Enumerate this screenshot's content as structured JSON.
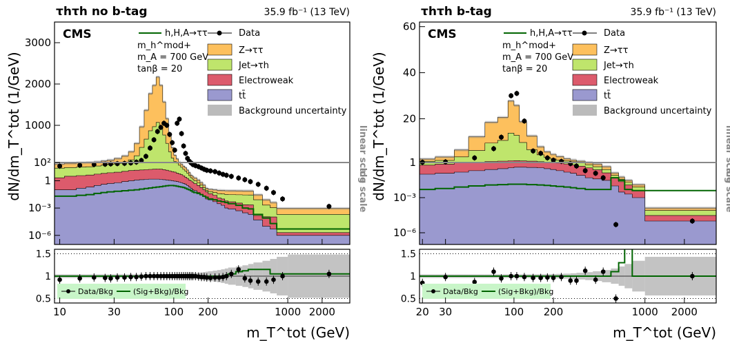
{
  "chart_data": [
    {
      "type": "histogram",
      "panel_title": "τhτh no b-tag",
      "lumi": "35.9 fb⁻¹ (13 TeV)",
      "experiment": "CMS",
      "ylabel": "dN/dm_T^tot (1/GeV)",
      "xlabel": "m_T^tot (GeV)",
      "xscale": "log",
      "xlim": [
        9,
        3500
      ],
      "x_tick_labels": [
        "10",
        "30",
        "100",
        "200",
        "1000",
        "2000"
      ],
      "x_tick_values": [
        10,
        30,
        100,
        200,
        1000,
        2000
      ],
      "upper_linear_ylim": [
        100,
        3500
      ],
      "upper_linear_ticks": [
        1000,
        2000,
        3000
      ],
      "lower_log_ylim": [
        1e-07,
        100
      ],
      "lower_log_tick_labels": [
        "10²",
        "1",
        "10⁻³",
        "10⁻⁶"
      ],
      "lower_log_tick_values": [
        100,
        1,
        0.001,
        1e-06
      ],
      "scale_labels": [
        "linear scale",
        "log scale"
      ],
      "signal_model": [
        "m_h^mod+",
        "m_A = 700 GeV",
        "tanβ = 20"
      ],
      "bin_edges": [
        9,
        11,
        14,
        17,
        20,
        23,
        26,
        30,
        35,
        40,
        45,
        50,
        55,
        60,
        65,
        70,
        75,
        80,
        85,
        90,
        95,
        100,
        105,
        110,
        115,
        120,
        125,
        130,
        135,
        140,
        145,
        150,
        160,
        170,
        180,
        190,
        200,
        220,
        240,
        260,
        280,
        300,
        350,
        400,
        450,
        500,
        600,
        700,
        800,
        1000,
        3500
      ],
      "series": [
        {
          "name": "Z→ττ",
          "color": "#fdc05d",
          "values": [
            45,
            55,
            60,
            65,
            75,
            85,
            95,
            120,
            150,
            200,
            300,
            500,
            700,
            900,
            1000,
            1100,
            1000,
            800,
            600,
            380,
            250,
            150,
            100,
            60,
            35,
            22,
            15,
            8,
            4,
            2,
            1.5,
            1,
            0.6,
            0.3,
            0.15,
            0.06,
            0.05,
            0.05,
            0.05,
            0.05,
            0.05,
            0.05,
            0.05,
            0.05,
            0.05,
            0.02,
            0.006,
            0.003,
            0.0007,
            0.0007
          ]
        },
        {
          "name": "Jet→τh",
          "color": "#bfe56c",
          "values": [
            22,
            25,
            28,
            30,
            36,
            45,
            55,
            70,
            100,
            150,
            250,
            450,
            650,
            850,
            950,
            1050,
            950,
            750,
            550,
            350,
            200,
            120,
            80,
            45,
            25,
            14,
            9,
            5,
            2.5,
            1.2,
            0.8,
            0.5,
            0.3,
            0.15,
            0.08,
            0.03,
            0.025,
            0.025,
            0.025,
            0.025,
            0.025,
            0.025,
            0.025,
            0.025,
            0.025,
            0.008,
            0.002,
            0.001,
            0.0002,
            0.0002
          ]
        },
        {
          "name": "Electroweak",
          "color": "#dc5b6c",
          "values": [
            2,
            3,
            3.5,
            4,
            5,
            6,
            7,
            8,
            10,
            12,
            13,
            14,
            15,
            16,
            17,
            18,
            17,
            15,
            13,
            11,
            9,
            8,
            6,
            5,
            4,
            3,
            2,
            1.5,
            1,
            0.8,
            0.6,
            0.4,
            0.25,
            0.15,
            0.08,
            0.05,
            0.03,
            0.02,
            0.01,
            0.008,
            0.005,
            0.004,
            0.003,
            0.002,
            0.002,
            0.0001,
            0.0001,
            0.0001,
            1e-06,
            1e-06
          ]
        },
        {
          "name": "tt̄",
          "color": "#9a99cf",
          "values": [
            0.1,
            0.1,
            0.15,
            0.2,
            0.3,
            0.4,
            0.5,
            0.6,
            0.8,
            1.0,
            1.2,
            1.3,
            1.4,
            1.5,
            1.5,
            1.5,
            1.4,
            1.3,
            1.2,
            1.1,
            1.0,
            0.9,
            0.8,
            0.7,
            0.6,
            0.5,
            0.4,
            0.3,
            0.2,
            0.15,
            0.1,
            0.08,
            0.05,
            0.03,
            0.02,
            0.01,
            0.008,
            0.005,
            0.003,
            0.002,
            0.001,
            0.0008,
            0.0005,
            0.0003,
            0.0002,
            5e-05,
            1e-05,
            5e-06,
            1e-06,
            1e-06
          ]
        },
        {
          "name": "h,H,A→ττ",
          "color": "#006400",
          "values": [
            0.02,
            0.02,
            0.025,
            0.03,
            0.04,
            0.05,
            0.06,
            0.07,
            0.08,
            0.09,
            0.1,
            0.12,
            0.14,
            0.16,
            0.18,
            0.2,
            0.22,
            0.25,
            0.28,
            0.3,
            0.3,
            0.28,
            0.25,
            0.22,
            0.2,
            0.18,
            0.15,
            0.12,
            0.1,
            0.08,
            0.06,
            0.05,
            0.04,
            0.03,
            0.02,
            0.015,
            0.01,
            0.008,
            0.006,
            0.005,
            0.004,
            0.003,
            0.002,
            0.001,
            0.0008,
            0.0002,
            8e-05,
            2e-05,
            5e-06,
            5e-06
          ]
        }
      ],
      "data": {
        "name": "Data",
        "x": [
          10,
          15,
          20,
          25,
          28,
          32,
          37,
          42,
          47,
          52,
          57,
          62,
          67,
          72,
          77,
          82,
          87,
          92,
          97,
          102,
          107,
          112,
          117,
          122,
          127,
          132,
          137,
          142,
          147,
          155,
          165,
          175,
          185,
          195,
          210,
          230,
          250,
          270,
          290,
          320,
          370,
          420,
          470,
          550,
          650,
          750,
          900,
          2300
        ],
        "y": [
          40,
          50,
          60,
          65,
          70,
          75,
          80,
          90,
          110,
          150,
          250,
          450,
          650,
          850,
          950,
          1050,
          1000,
          780,
          580,
          400,
          1050,
          1150,
          800,
          500,
          320,
          200,
          130,
          90,
          60,
          45,
          35,
          25,
          18,
          14,
          12,
          10,
          7,
          5,
          4,
          3,
          2,
          1.3,
          0.8,
          0.4,
          0.15,
          0.05,
          0.01,
          0.0015
        ]
      },
      "ratio": {
        "ylim": [
          0.4,
          1.6
        ],
        "ticks": [
          0.5,
          1,
          1.5
        ],
        "legend": [
          "Data/Bkg",
          "(Sig+Bkg)/Bkg"
        ],
        "data_x": [
          10,
          15,
          20,
          25,
          28,
          32,
          37,
          42,
          47,
          52,
          57,
          62,
          67,
          72,
          77,
          82,
          87,
          92,
          97,
          102,
          107,
          112,
          117,
          122,
          127,
          132,
          137,
          142,
          147,
          155,
          165,
          175,
          185,
          195,
          210,
          230,
          250,
          270,
          290,
          320,
          370,
          420,
          470,
          550,
          650,
          750,
          900,
          2300
        ],
        "data_y": [
          0.92,
          0.95,
          0.97,
          0.96,
          0.95,
          0.97,
          0.97,
          0.98,
          0.98,
          0.99,
          1.0,
          1.0,
          1.0,
          1.0,
          1.0,
          1.0,
          1.0,
          1.0,
          1.0,
          1.0,
          1.0,
          1.0,
          1.0,
          1.0,
          1.0,
          1.0,
          1.0,
          1.0,
          1.0,
          1.0,
          0.99,
          0.98,
          0.98,
          0.97,
          0.96,
          0.97,
          0.97,
          0.98,
          1.0,
          1.05,
          1.15,
          0.95,
          0.9,
          0.88,
          0.88,
          0.92,
          1.0,
          1.05
        ],
        "sig_y": [
          1.0,
          1.0,
          1.0,
          1.0,
          1.0,
          1.0,
          1.0,
          1.0,
          1.0,
          1.0,
          1.0,
          1.0,
          1.0,
          1.0,
          1.0,
          1.0,
          1.0,
          1.0,
          1.0,
          1.0,
          1.0,
          1.0,
          1.0,
          1.0,
          1.0,
          1.0,
          1.0,
          1.0,
          1.0,
          1.0,
          1.0,
          1.0,
          1.0,
          1.0,
          1.0,
          1.0,
          1.0,
          1.0,
          1.0,
          1.0,
          1.02,
          1.05,
          1.1,
          1.12,
          1.15,
          1.15,
          1.15,
          1.05,
          1.05,
          1.05
        ]
      }
    },
    {
      "type": "histogram",
      "panel_title": "τhτh b-tag",
      "lumi": "35.9 fb⁻¹ (13 TeV)",
      "experiment": "CMS",
      "ylabel": "dN/dm_T^tot (1/GeV)",
      "xlabel": "m_T^tot (GeV)",
      "xscale": "log",
      "xlim": [
        19,
        3500
      ],
      "x_tick_labels": [
        "20",
        "30",
        "100",
        "200",
        "1000",
        "2000"
      ],
      "x_tick_values": [
        20,
        30,
        100,
        200,
        1000,
        2000
      ],
      "upper_linear_ylim": [
        1,
        62
      ],
      "upper_linear_ticks": [
        20,
        40,
        60
      ],
      "lower_log_ylim": [
        1e-07,
        1
      ],
      "lower_log_tick_labels": [
        "1",
        "10⁻³",
        "10⁻⁶"
      ],
      "lower_log_tick_values": [
        1,
        0.001,
        1e-06
      ],
      "scale_labels": [
        "linear scale",
        "log scale"
      ],
      "signal_model": [
        "m_h^mod+",
        "m_A = 700 GeV",
        "tanβ = 20"
      ],
      "bin_edges": [
        19,
        25,
        35,
        45,
        60,
        75,
        90,
        100,
        110,
        125,
        150,
        170,
        190,
        210,
        240,
        270,
        300,
        350,
        400,
        470,
        550,
        630,
        700,
        800,
        1000,
        3500
      ],
      "series": [
        {
          "name": "Z→ττ",
          "color": "#fdc05d",
          "values": [
            1.0,
            1.5,
            3,
            6,
            9,
            10,
            14,
            13,
            9,
            6,
            3.5,
            2.5,
            2,
            1.5,
            1,
            0.8,
            0.6,
            0.4,
            0.3,
            0.2,
            0.05,
            0.02,
            0.01,
            0.005,
            5e-05
          ]
        },
        {
          "name": "Jet→τh",
          "color": "#bfe56c",
          "values": [
            0.9,
            1.2,
            2.5,
            5,
            8,
            9,
            12,
            11,
            8,
            5,
            3,
            2,
            1.5,
            1.2,
            0.9,
            0.7,
            0.5,
            0.3,
            0.2,
            0.12,
            0.03,
            0.015,
            0.008,
            0.004,
            5e-05
          ]
        },
        {
          "name": "Electroweak",
          "color": "#dc5b6c",
          "values": [
            0.5,
            0.6,
            0.8,
            1.0,
            1.2,
            1.3,
            1.4,
            1.4,
            1.3,
            1.2,
            1.0,
            0.9,
            0.8,
            0.7,
            0.6,
            0.5,
            0.4,
            0.3,
            0.2,
            0.1,
            0.04,
            0.02,
            0.01,
            0.003,
            2e-05
          ]
        },
        {
          "name": "tt̄",
          "color": "#9a99cf",
          "values": [
            0.1,
            0.12,
            0.15,
            0.2,
            0.25,
            0.3,
            0.35,
            0.4,
            0.4,
            0.38,
            0.35,
            0.3,
            0.25,
            0.2,
            0.15,
            0.12,
            0.08,
            0.05,
            0.04,
            0.03,
            0.01,
            0.003,
            0.002,
            0.001,
            1e-05
          ]
        },
        {
          "name": "h,H,A→ττ",
          "color": "#006400",
          "values": [
            0.005,
            0.006,
            0.008,
            0.01,
            0.012,
            0.013,
            0.014,
            0.014,
            0.014,
            0.013,
            0.012,
            0.011,
            0.01,
            0.009,
            0.008,
            0.007,
            0.006,
            0.005,
            0.005,
            0.005,
            0.05,
            0.03,
            0.005,
            0.004,
            0.004
          ]
        }
      ],
      "data": {
        "name": "Data",
        "x": [
          20,
          30,
          50,
          70,
          80,
          95,
          105,
          120,
          140,
          160,
          180,
          200,
          230,
          270,
          300,
          350,
          420,
          480,
          600,
          2300
        ],
        "y": [
          1.1,
          1.3,
          3,
          7,
          12,
          30,
          31,
          19,
          6,
          5,
          3,
          2,
          1.5,
          0.8,
          0.5,
          0.2,
          0.12,
          0.05,
          5e-06,
          1e-05
        ]
      },
      "ratio": {
        "ylim": [
          0.4,
          1.6
        ],
        "ticks": [
          0.5,
          1,
          1.5
        ],
        "legend": [
          "Data/Bkg",
          "(Sig+Bkg)/Bkg"
        ],
        "data_x": [
          20,
          30,
          50,
          70,
          80,
          95,
          105,
          120,
          140,
          160,
          180,
          200,
          230,
          270,
          300,
          350,
          420,
          480,
          600,
          2300
        ],
        "data_y": [
          0.85,
          0.98,
          0.87,
          1.1,
          0.95,
          1.0,
          1.0,
          0.98,
          0.96,
          0.96,
          0.97,
          0.96,
          0.98,
          0.9,
          0.9,
          1.12,
          0.92,
          1.1,
          0.5,
          1.0
        ],
        "sig_y": [
          1.0,
          1.0,
          1.0,
          1.0,
          1.0,
          1.0,
          1.0,
          1.0,
          1.0,
          1.0,
          1.0,
          1.0,
          1.0,
          1.0,
          1.0,
          1.0,
          1.0,
          1.0,
          1.0,
          1.0,
          1.1,
          1.3,
          1.8,
          1.0,
          1.0
        ]
      }
    }
  ]
}
